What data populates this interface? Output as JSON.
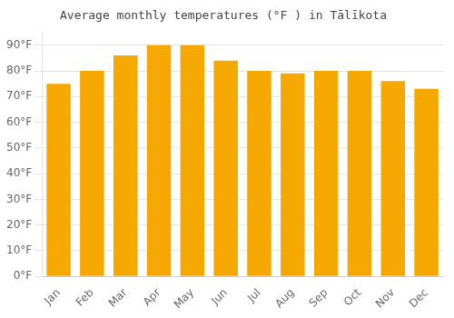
{
  "chart_data": {
    "type": "bar",
    "title": "Average monthly temperatures (°F ) in Tālīkota",
    "categories": [
      "Jan",
      "Feb",
      "Mar",
      "Apr",
      "May",
      "Jun",
      "Jul",
      "Aug",
      "Sep",
      "Oct",
      "Nov",
      "Dec"
    ],
    "values": [
      75,
      80,
      86,
      90,
      90,
      84,
      80,
      79,
      80,
      80,
      76,
      73
    ],
    "color": "#F5A800",
    "ylim": [
      0,
      95
    ],
    "yticks": [
      {
        "value": 0,
        "label": "0°F"
      },
      {
        "value": 10,
        "label": "10°F"
      },
      {
        "value": 20,
        "label": "20°F"
      },
      {
        "value": 30,
        "label": "30°F"
      },
      {
        "value": 40,
        "label": "40°F"
      },
      {
        "value": 50,
        "label": "50°F"
      },
      {
        "value": 60,
        "label": "60°F"
      },
      {
        "value": 70,
        "label": "70°F"
      },
      {
        "value": 80,
        "label": "80°F"
      },
      {
        "value": 90,
        "label": "90°F"
      }
    ],
    "grid": true
  }
}
